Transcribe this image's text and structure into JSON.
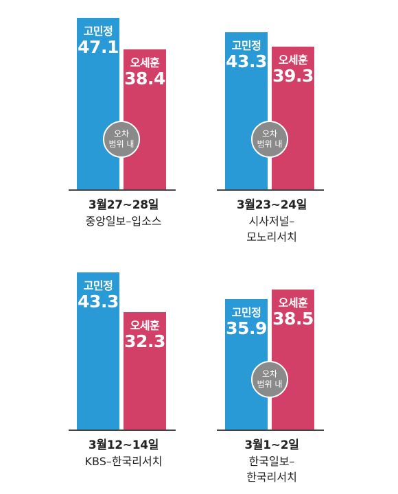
{
  "colors": {
    "goh": "#2a9ad6",
    "oh": "#d24068",
    "badge": "#8a8a8a"
  },
  "chart_data": [
    {
      "type": "bar",
      "categories": [
        "고민정",
        "오세훈"
      ],
      "values": [
        47.1,
        38.4
      ],
      "value_labels": [
        "47.1",
        "38.4"
      ],
      "date": "3월27~28일",
      "source_lines": [
        "중앙일보–입소스"
      ],
      "annotation": [
        "오차",
        "범위 내"
      ]
    },
    {
      "type": "bar",
      "categories": [
        "고민정",
        "오세훈"
      ],
      "values": [
        43.3,
        39.3
      ],
      "value_labels": [
        "43.3",
        "39.3"
      ],
      "date": "3월23~24일",
      "source_lines": [
        "시사저널–",
        "모노리서치"
      ],
      "annotation": [
        "오차",
        "범위 내"
      ]
    },
    {
      "type": "bar",
      "categories": [
        "고민정",
        "오세훈"
      ],
      "values": [
        43.3,
        32.3
      ],
      "value_labels": [
        "43.3",
        "32.3"
      ],
      "date": "3월12~14일",
      "source_lines": [
        "KBS–한국리서치"
      ],
      "annotation": null
    },
    {
      "type": "bar",
      "categories": [
        "고민정",
        "오세훈"
      ],
      "values": [
        35.9,
        38.5
      ],
      "value_labels": [
        "35.9",
        "38.5"
      ],
      "date": "3월1~2일",
      "source_lines": [
        "한국일보–",
        "한국리서치"
      ],
      "annotation": [
        "오차",
        "범위 내"
      ]
    }
  ]
}
